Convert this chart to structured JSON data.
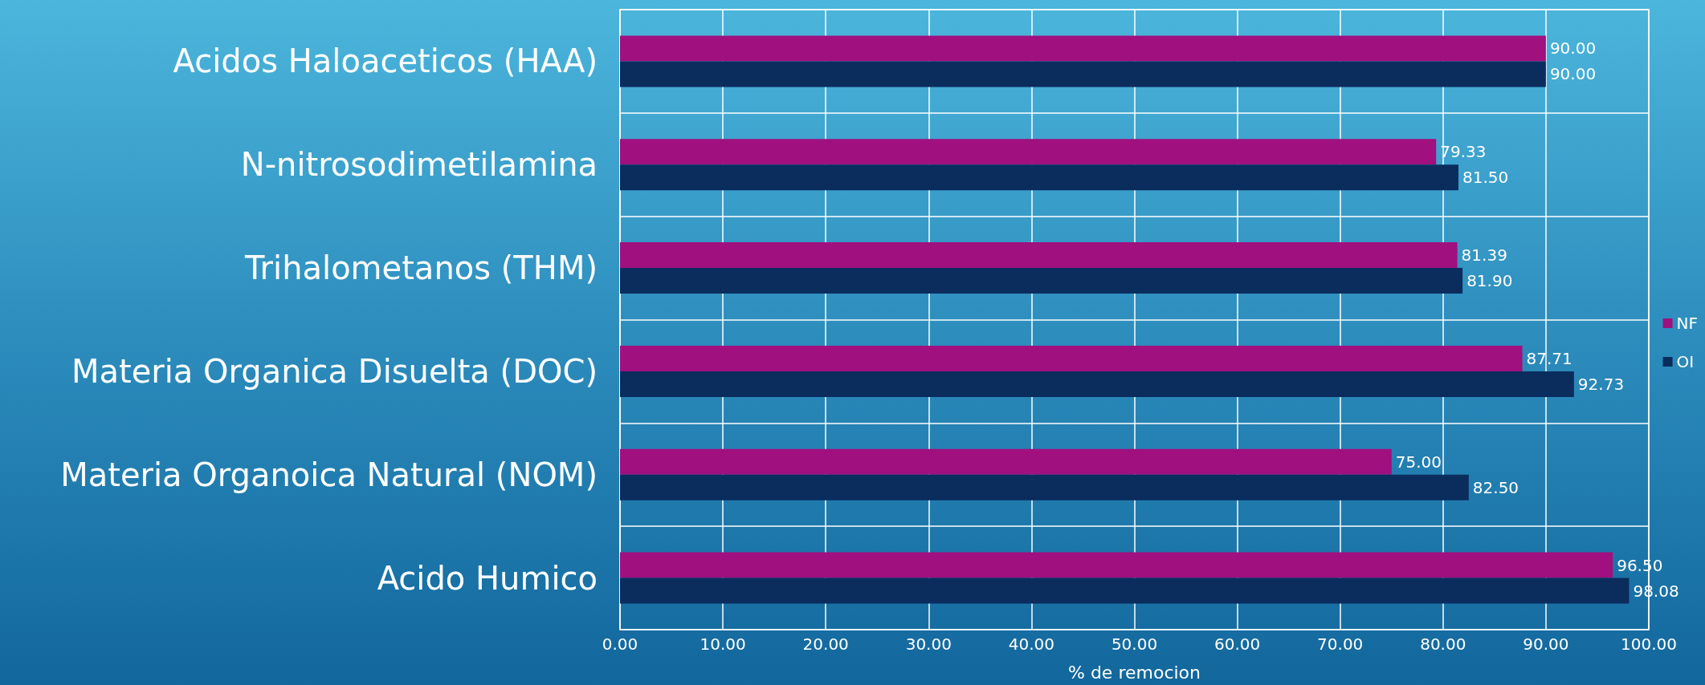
{
  "chart_data": {
    "type": "bar",
    "orientation": "horizontal",
    "xlabel": "% de remocion",
    "categories": [
      "Acidos Haloaceticos (HAA)",
      "N-nitrosodimetilamina",
      "Trihalometanos (THM)",
      "Materia Organica Disuelta (DOC)",
      "Materia Organoica Natural (NOM)",
      "Acido Humico"
    ],
    "series": [
      {
        "name": "NF",
        "color": "#a0107e",
        "values": [
          90.0,
          79.33,
          81.39,
          87.71,
          75.0,
          96.5
        ],
        "value_labels": [
          "90.00",
          "79.33",
          "81.39",
          "87.71",
          "75.00",
          "96.50"
        ]
      },
      {
        "name": "OI",
        "color": "#0a2d5e",
        "values": [
          90.0,
          81.5,
          81.9,
          92.73,
          82.5,
          98.08
        ],
        "value_labels": [
          "90.00",
          "81.50",
          "81.90",
          "92.73",
          "82.50",
          "98.08"
        ]
      }
    ],
    "xlim": [
      0,
      100
    ],
    "xticks": [
      {
        "value": 0,
        "label": "0.00"
      },
      {
        "value": 10,
        "label": "10.00"
      },
      {
        "value": 20,
        "label": "20.00"
      },
      {
        "value": 30,
        "label": "30.00"
      },
      {
        "value": 40,
        "label": "40.00"
      },
      {
        "value": 50,
        "label": "50.00"
      },
      {
        "value": 60,
        "label": "60.00"
      },
      {
        "value": 70,
        "label": "70.00"
      },
      {
        "value": 80,
        "label": "80.00"
      },
      {
        "value": 90,
        "label": "90.00"
      },
      {
        "value": 100,
        "label": "100.00"
      }
    ],
    "grid": true,
    "legend": "right"
  }
}
